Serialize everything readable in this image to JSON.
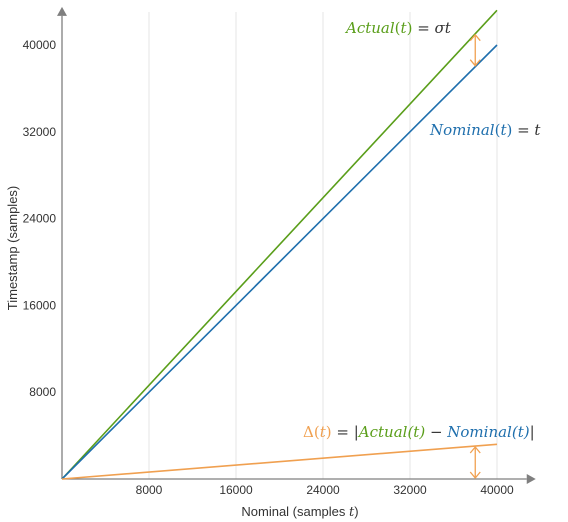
{
  "chart_data": {
    "type": "line",
    "xlabel_prefix": "Nominal (samples ",
    "xlabel_var": "t",
    "xlabel_suffix": ")",
    "ylabel": "Timestamp (samples)",
    "xlim": [
      0,
      42000
    ],
    "ylim": [
      0,
      42500
    ],
    "x_ticks": [
      8000,
      16000,
      24000,
      32000,
      40000
    ],
    "y_ticks": [
      8000,
      16000,
      24000,
      32000,
      40000
    ],
    "x_tick_labels": [
      "8000",
      "16000",
      "24000",
      "32000",
      "40000"
    ],
    "y_tick_labels": [
      "8000",
      "16000",
      "24000",
      "32000",
      "40000"
    ],
    "grid": {
      "vertical": true,
      "horizontal": false
    },
    "series": [
      {
        "key": "actual",
        "color": "#5a9e1a",
        "x": [
          0,
          40000
        ],
        "y": [
          0,
          43200
        ]
      },
      {
        "key": "nominal",
        "color": "#1f6fad",
        "x": [
          0,
          40000
        ],
        "y": [
          0,
          40000
        ]
      },
      {
        "key": "delta",
        "color": "#f0a050",
        "x": [
          0,
          40000
        ],
        "y": [
          0,
          3200
        ]
      }
    ],
    "annotations": {
      "actual": {
        "name": "Actual",
        "open": "(",
        "var": "t",
        "close": ")",
        "rhs": " = σt",
        "color": "#5a9e1a"
      },
      "nominal": {
        "name": "Nominal",
        "open": "(",
        "var": "t",
        "close": ")",
        "rhs": " = t",
        "color": "#1f6fad"
      },
      "delta": {
        "delta_symbol": "Δ",
        "open": "(",
        "var": "t",
        "close": ")",
        "eq": " = |",
        "actual_name": "Actual",
        "actual_arg": "(t)",
        "minus": " − ",
        "nominal_name": "Nominal",
        "nominal_arg": "(t)",
        "bar": "|",
        "delta_color": "#f0a050",
        "actual_color": "#5a9e1a",
        "nominal_color": "#1f6fad",
        "black": "#333333"
      }
    },
    "gap_arrow_color": "#f0a050",
    "gap_arrows_at_x": 38000
  }
}
